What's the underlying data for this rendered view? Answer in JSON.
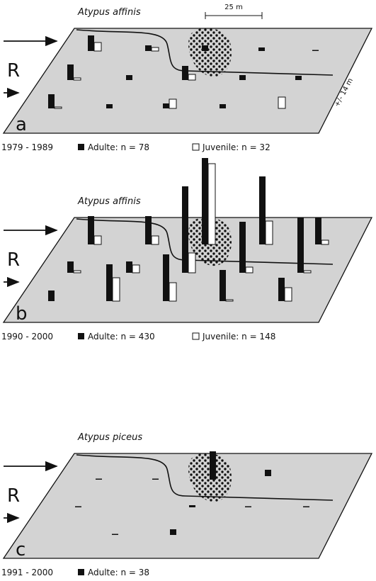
{
  "scale_label": "25 m",
  "width_label": "+/- 14 m",
  "panels": [
    {
      "species": "Atypus affinis",
      "side": "R",
      "letter": "a",
      "period": "1979 - 1989",
      "adult": "Adulte: n = 78",
      "juvenile": "Juvenile: n = 32"
    },
    {
      "species": "Atypus affinis",
      "side": "R",
      "letter": "b",
      "period": "1990 - 2000",
      "adult": "Adulte: n = 430",
      "juvenile": "Juvenile: n = 148"
    },
    {
      "species": "Atypus piceus",
      "side": "R",
      "letter": "c",
      "period": "1991 - 2000",
      "adult": "Adulte: n = 38"
    }
  ]
}
